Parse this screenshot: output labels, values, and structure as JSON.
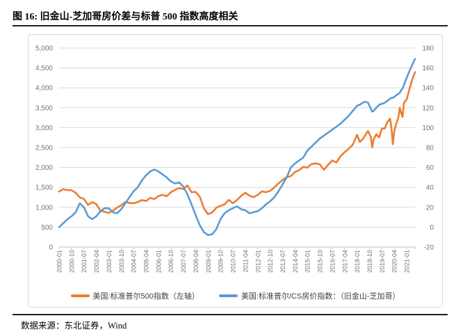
{
  "title": "图 16: 旧金山-芝加哥房价差与标普 500 指数高度相关",
  "source": "数据来源：东北证券，Wind",
  "colors": {
    "sp500_line": "#ED7D31",
    "spread_line": "#5B9BD5",
    "gridline": "#D9D9D9",
    "axis_line": "#BFBFBF",
    "tick_label": "#737373",
    "legend_text": "#404040",
    "rule": "#1F1F1F"
  },
  "chart_data": {
    "type": "line",
    "title": "图 16: 旧金山-芝加哥房价差与标普 500 指数高度相关",
    "xlabel": "",
    "ylabel_left": "",
    "ylabel_right": "",
    "grid": true,
    "legend_position": "bottom",
    "x_tick_labels": [
      "2000-01",
      "2000-10",
      "2001-07",
      "2002-04",
      "2003-01",
      "2003-10",
      "2004-07",
      "2005-04",
      "2006-01",
      "2006-10",
      "2007-07",
      "2008-04",
      "2009-01",
      "2009-10",
      "2010-07",
      "2011-04",
      "2012-01",
      "2012-10",
      "2013-07",
      "2014-04",
      "2015-01",
      "2015-10",
      "2016-07",
      "2017-04",
      "2018-01",
      "2018-10",
      "2019-07",
      "2020-04",
      "2021-01"
    ],
    "x_tick_step_months": 9,
    "x_month_range": [
      0,
      258
    ],
    "y_left": {
      "min": 0,
      "max": 5000,
      "step": 500,
      "tick_labels": [
        "5,000",
        "4,500",
        "4,000",
        "3,500",
        "3,000",
        "2,500",
        "2,000",
        "1,500",
        "1,000",
        "500",
        "0"
      ]
    },
    "y_right": {
      "min": -20,
      "max": 180,
      "step": 20,
      "tick_labels": [
        "180",
        "160",
        "140",
        "120",
        "100",
        "80",
        "60",
        "40",
        "20",
        "0",
        "-20"
      ]
    },
    "months": [
      0,
      3,
      6,
      9,
      12,
      15,
      18,
      21,
      24,
      27,
      30,
      33,
      36,
      39,
      42,
      45,
      48,
      51,
      54,
      57,
      60,
      63,
      66,
      69,
      72,
      75,
      78,
      81,
      84,
      87,
      90,
      93,
      96,
      99,
      102,
      105,
      108,
      111,
      114,
      117,
      120,
      123,
      126,
      129,
      132,
      135,
      138,
      141,
      144,
      147,
      150,
      153,
      156,
      159,
      162,
      165,
      168,
      171,
      174,
      177,
      180,
      183,
      186,
      189,
      192,
      195,
      198,
      201,
      204,
      207,
      210,
      213,
      216,
      218,
      220,
      222,
      224,
      226,
      227,
      228,
      230,
      232,
      234,
      236,
      238,
      240,
      241,
      242,
      243,
      244,
      246,
      247,
      248,
      249,
      250,
      252,
      254,
      256,
      258
    ],
    "series": [
      {
        "name": "美国:标准普尔500指数（左轴）",
        "axis": "left",
        "color": "#ED7D31",
        "values": [
          1394,
          1452,
          1431,
          1429,
          1366,
          1249,
          1211,
          1060,
          1130,
          1077,
          912,
          886,
          856,
          917,
          990,
          1051,
          1131,
          1107,
          1102,
          1130,
          1181,
          1157,
          1234,
          1207,
          1280,
          1311,
          1277,
          1378,
          1438,
          1482,
          1455,
          1549,
          1379,
          1386,
          1267,
          969,
          826,
          873,
          987,
          1036,
          1074,
          1187,
          1102,
          1183,
          1286,
          1364,
          1292,
          1253,
          1312,
          1398,
          1379,
          1412,
          1498,
          1598,
          1686,
          1757,
          1783,
          1884,
          1931,
          2018,
          1995,
          2086,
          2104,
          2079,
          1940,
          2065,
          2174,
          2126,
          2279,
          2384,
          2470,
          2575,
          2824,
          2641,
          2705,
          2816,
          2914,
          2760,
          2507,
          2704,
          2834,
          2752,
          2980,
          2977,
          3141,
          3226,
          2954,
          2585,
          2912,
          3044,
          3271,
          3500,
          3363,
          3270,
          3622,
          3714,
          3973,
          4204,
          4395
        ]
      },
      {
        "name": "美国:标准普尔/CS房价指数：（旧金山-芝加哥）",
        "axis": "right",
        "color": "#5B9BD5",
        "values": [
          0,
          4,
          8,
          11,
          15,
          24,
          20,
          11,
          8,
          11,
          16,
          19,
          19,
          15,
          14,
          18,
          24,
          30,
          36,
          40,
          47,
          52,
          56,
          58,
          56,
          53,
          50,
          46,
          44,
          45,
          41,
          33,
          23,
          12,
          2,
          -5,
          -8,
          -7,
          -2,
          8,
          14,
          17,
          19,
          21,
          18,
          17,
          14,
          15,
          16,
          19,
          23,
          26,
          30,
          36,
          43,
          50,
          60,
          64,
          67,
          70,
          77,
          81,
          85,
          89,
          92,
          95,
          98,
          101,
          104,
          108,
          112,
          117,
          122,
          123,
          125,
          126,
          125,
          119,
          116,
          117,
          120,
          123,
          124,
          125,
          127,
          129,
          130,
          130,
          131,
          132,
          134,
          135,
          138,
          139,
          143,
          150,
          157,
          163,
          169
        ]
      }
    ]
  }
}
